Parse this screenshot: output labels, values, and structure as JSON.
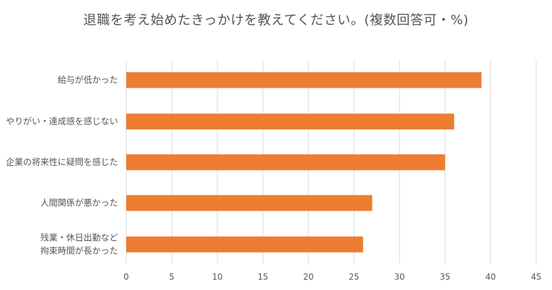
{
  "chart_data": {
    "type": "bar",
    "orientation": "horizontal",
    "title": "退職を考え始めたきっかけを教えてください。(複数回答可・%)",
    "categories": [
      [
        "給与が低かった"
      ],
      [
        "やりがい・達成感を感じない"
      ],
      [
        "企業の将来性に疑問を感じた"
      ],
      [
        "人間関係が悪かった"
      ],
      [
        "残業・休日出勤など",
        "拘束時間が長かった"
      ]
    ],
    "values": [
      39,
      36,
      35,
      27,
      26
    ],
    "xlim": [
      0,
      45
    ],
    "xticks": [
      0,
      5,
      10,
      15,
      20,
      25,
      30,
      35,
      40,
      45
    ],
    "grid": true,
    "legend": "none",
    "colors": {
      "bar": "#ED7D31",
      "grid": "#D9D9D9",
      "text": "#595959"
    }
  }
}
